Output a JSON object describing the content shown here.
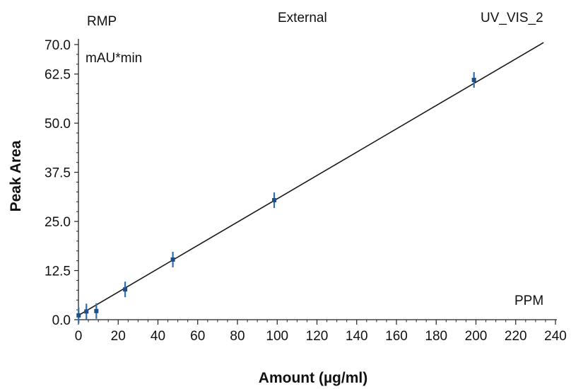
{
  "header": {
    "left": "RMP",
    "center": "External",
    "right": "UV_VIS_2"
  },
  "chart_data": {
    "type": "scatter",
    "title": "",
    "xlabel": "Amount (µg/ml)",
    "ylabel": "Peak Area",
    "y_unit_label": "mAU*min",
    "inner_label": "PPM",
    "xlim": [
      0,
      240
    ],
    "ylim": [
      0,
      70
    ],
    "x_ticks": [
      "0",
      "20",
      "40",
      "60",
      "80",
      "100",
      "120",
      "140",
      "160",
      "180",
      "200",
      "220",
      "240"
    ],
    "y_ticks": [
      "0.0",
      "12.5",
      "25.0",
      "37.5",
      "50.0",
      "62.5",
      "70.0"
    ],
    "grid": false,
    "legend": "none",
    "colors": {
      "points": "#2f6fb0",
      "line": "#1a1a1a",
      "axis": "#222222"
    },
    "series": [
      {
        "points": [
          {
            "x": 0.1,
            "y": 1.1
          },
          {
            "x": 4,
            "y": 2.1
          },
          {
            "x": 9,
            "y": 2.2
          },
          {
            "x": 23.5,
            "y": 7.7
          },
          {
            "x": 47.5,
            "y": 15.3
          },
          {
            "x": 98.5,
            "y": 30.4
          },
          {
            "x": 199,
            "y": 61.0
          }
        ]
      }
    ],
    "fit_line": {
      "x": [
        0,
        234
      ],
      "y": [
        1.1,
        70.5
      ]
    }
  }
}
